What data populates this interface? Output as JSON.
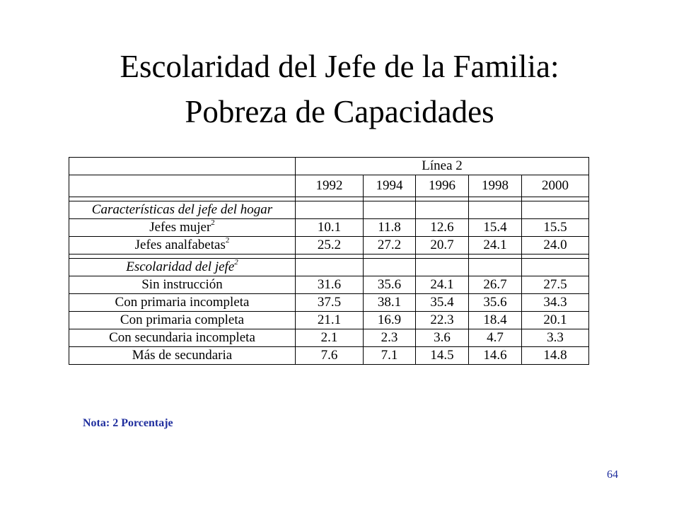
{
  "title": {
    "line1": "Escolaridad del Jefe de la Familia:",
    "line2": "Pobreza de Capacidades"
  },
  "table": {
    "group_header": "Línea 2",
    "years": [
      "1992",
      "1994",
      "1996",
      "1998",
      "2000"
    ],
    "section1": {
      "label": "Características del jefe del hogar"
    },
    "rows1": [
      {
        "label": "Jefes mujer",
        "sup": "2",
        "values": [
          "10.1",
          "11.8",
          "12.6",
          "15.4",
          "15.5"
        ]
      },
      {
        "label": "Jefes analfabetas",
        "sup": "2",
        "values": [
          "25.2",
          "27.2",
          "20.7",
          "24.1",
          "24.0"
        ]
      }
    ],
    "section2": {
      "label": "Escolaridad del jefe",
      "sup": "2"
    },
    "rows2": [
      {
        "label": "Sin instrucción",
        "values": [
          "31.6",
          "35.6",
          "24.1",
          "26.7",
          "27.5"
        ]
      },
      {
        "label": "Con primaria incompleta",
        "values": [
          "37.5",
          "38.1",
          "35.4",
          "35.6",
          "34.3"
        ]
      },
      {
        "label": "Con primaria completa",
        "values": [
          "21.1",
          "16.9",
          "22.3",
          "18.4",
          "20.1"
        ]
      },
      {
        "label": "Con secundaria incompleta",
        "values": [
          "2.1",
          "2.3",
          "3.6",
          "4.7",
          "3.3"
        ]
      },
      {
        "label": "Más de secundaria",
        "values": [
          "7.6",
          "7.1",
          "14.5",
          "14.6",
          "14.8"
        ]
      }
    ]
  },
  "note": "Nota: 2 Porcentaje",
  "page_number": "64",
  "colors": {
    "note": "#1f2e9e",
    "text": "#000000",
    "background": "#ffffff"
  }
}
